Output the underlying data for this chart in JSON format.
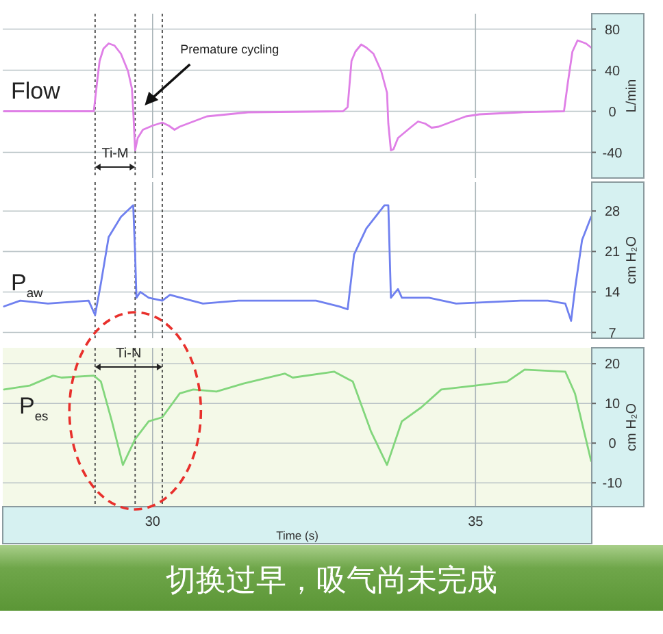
{
  "chart_data": [
    {
      "type": "line",
      "ylabel": "L/min",
      "xlim": [
        27.68,
        36.8
      ],
      "ylim": [
        -65,
        95
      ],
      "yticks": [
        -40,
        0,
        40,
        80
      ],
      "grid": true,
      "tick_labels": "y",
      "series": [
        {
          "name": "Flow",
          "color": "#df7fe6",
          "x": [
            27.7,
            29.09,
            29.14,
            29.18,
            29.24,
            29.32,
            29.41,
            29.51,
            29.62,
            29.68,
            29.7,
            29.73,
            29.77,
            29.85,
            30.0,
            30.15,
            30.25,
            30.34,
            30.42,
            30.84,
            31.48,
            32.95,
            33.02,
            33.08,
            33.14,
            33.23,
            33.31,
            33.42,
            33.54,
            33.63,
            33.65,
            33.69,
            33.73,
            33.8,
            34.01,
            34.11,
            34.22,
            34.32,
            34.43,
            34.85,
            35.06,
            35.7,
            36.37,
            36.43,
            36.5,
            36.58,
            36.71,
            36.79
          ],
          "values": [
            0,
            0,
            28,
            49,
            61,
            66,
            64,
            56,
            39,
            22,
            1,
            -38,
            -26,
            -18,
            -14,
            -11,
            -14,
            -18,
            -15,
            -5,
            -1,
            0,
            4,
            49,
            58,
            65,
            62,
            56,
            39,
            18,
            -12,
            -38,
            -37,
            -26,
            -15,
            -10,
            -12,
            -16,
            -15,
            -5,
            -3,
            -1,
            0,
            28,
            58,
            69,
            66,
            62
          ]
        }
      ],
      "ref_lines": [
        {
          "axis": "x",
          "value": 29.11,
          "line_style": "dashed"
        },
        {
          "axis": "x",
          "value": 29.73,
          "line_style": "dashed"
        },
        {
          "axis": "x",
          "value": 30.15,
          "line_style": "dashed"
        }
      ],
      "annotations": [
        "Premature cycling",
        "Ti-M"
      ]
    },
    {
      "type": "line",
      "ylabel": "cm H₂O",
      "xlim": [
        27.68,
        36.8
      ],
      "ylim": [
        6,
        33
      ],
      "yticks": [
        7,
        14,
        21,
        28
      ],
      "grid": true,
      "tick_labels": "y",
      "series": [
        {
          "name": "P$_{aw}$",
          "color": "#6f80ef",
          "x": [
            27.7,
            27.95,
            28.38,
            29.01,
            29.11,
            29.2,
            29.32,
            29.51,
            29.7,
            29.73,
            29.75,
            29.81,
            29.94,
            30.15,
            30.27,
            30.78,
            31.33,
            31.9,
            32.53,
            32.89,
            33.02,
            33.12,
            33.31,
            33.59,
            33.65,
            33.69,
            33.8,
            33.86,
            34.28,
            34.7,
            35.7,
            36.12,
            36.39,
            36.48,
            36.54,
            36.65,
            36.79
          ],
          "values": [
            11.5,
            12.5,
            12,
            12.5,
            10,
            15.5,
            23.5,
            27,
            29,
            20.5,
            13,
            14,
            13,
            12.5,
            13.5,
            12,
            12.5,
            12.5,
            12.5,
            11.5,
            11,
            20.5,
            25,
            29,
            29,
            13,
            14.5,
            13,
            13,
            12,
            12.5,
            12.5,
            12,
            9,
            14.5,
            23,
            27
          ]
        }
      ],
      "ref_lines": [
        {
          "axis": "x",
          "value": 29.11,
          "line_style": "dashed"
        },
        {
          "axis": "x",
          "value": 29.73,
          "line_style": "dashed"
        },
        {
          "axis": "x",
          "value": 30.15,
          "line_style": "dashed"
        }
      ]
    },
    {
      "type": "line",
      "ylabel": "cm H₂O",
      "xlabel": "Time (s)",
      "xlim": [
        27.68,
        36.8
      ],
      "xticks": [
        30,
        35
      ],
      "ylim": [
        -16,
        24
      ],
      "yticks": [
        -10,
        0,
        10,
        20
      ],
      "grid": true,
      "series": [
        {
          "name": "P$_{es}$",
          "color": "#82d67c",
          "x": [
            27.7,
            28.1,
            28.46,
            28.59,
            29.09,
            29.2,
            29.37,
            29.54,
            29.73,
            29.94,
            30.15,
            30.42,
            30.63,
            30.99,
            31.41,
            32.05,
            32.17,
            32.81,
            33.1,
            33.38,
            33.63,
            33.86,
            34.16,
            34.47,
            35.0,
            35.49,
            35.76,
            36.39,
            36.54,
            36.79
          ],
          "values": [
            13.5,
            14.5,
            17,
            16.5,
            17,
            15.5,
            5.5,
            -5.5,
            1,
            5.5,
            6.5,
            12.5,
            13.5,
            13,
            15,
            17.5,
            16.5,
            18,
            15.5,
            3,
            -5.5,
            5.5,
            9,
            13.5,
            14.5,
            15.5,
            18.5,
            18,
            12.5,
            -4.5
          ]
        }
      ],
      "ref_lines": [
        {
          "axis": "x",
          "value": 29.11,
          "line_style": "dashed"
        },
        {
          "axis": "x",
          "value": 29.73,
          "line_style": "dashed"
        },
        {
          "axis": "x",
          "value": 30.15,
          "line_style": "dashed"
        }
      ],
      "annotations": [
        "Ti-N",
        "切换过早，吸气尚未完成"
      ]
    }
  ]
}
